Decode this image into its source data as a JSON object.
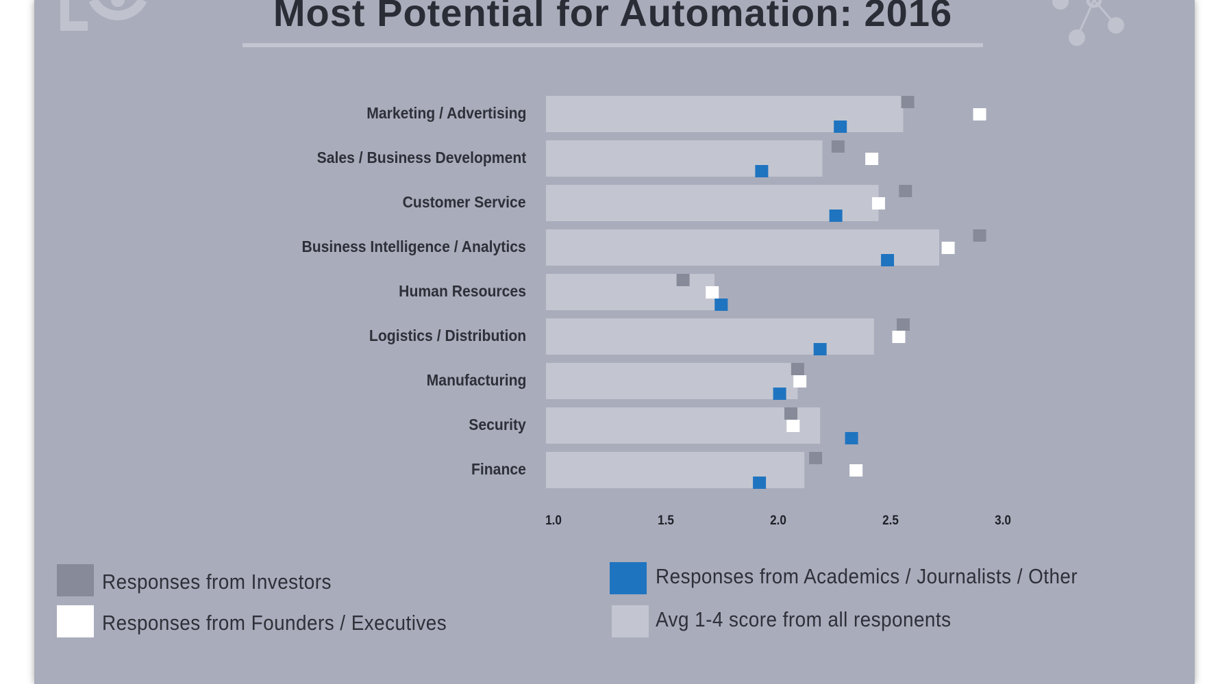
{
  "colors": {
    "background": "#a9acbb",
    "avg_bar": "#c3c6d0",
    "investors": "#878a98",
    "founders": "#ffffff",
    "academics": "#1f74c0"
  },
  "logos": [
    "eo-logo-icon",
    "molecule-icon"
  ],
  "chart_data": {
    "type": "bar",
    "orientation": "horizontal",
    "title": "Most Potential for Automation: 2016",
    "xlabel": "",
    "ylabel": "",
    "xlim": [
      1.0,
      3.0
    ],
    "xticks": [
      "1.0",
      "1.5",
      "2.0",
      "2.5",
      "3.0"
    ],
    "grid": false,
    "legend_position": "bottom",
    "categories": [
      "Marketing / Advertising",
      "Sales / Business Development",
      "Customer Service",
      "Business Intelligence / Analytics",
      "Human Resources",
      "Logistics / Distribution",
      "Manufacturing",
      "Security",
      "Finance"
    ],
    "series": [
      {
        "name": "Avg 1-4 score from all responents",
        "mark": "bar",
        "color": "#c3c6d0",
        "values": [
          2.59,
          2.23,
          2.48,
          2.75,
          1.75,
          2.46,
          2.12,
          2.22,
          2.15
        ]
      },
      {
        "name": "Responses from Investors",
        "mark": "square",
        "color": "#878a98",
        "values": [
          2.61,
          2.3,
          2.6,
          2.93,
          1.61,
          2.59,
          2.12,
          2.09,
          2.2
        ]
      },
      {
        "name": "Responses from Founders / Executives",
        "mark": "square",
        "color": "#ffffff",
        "values": [
          2.93,
          2.45,
          2.48,
          2.79,
          1.74,
          2.57,
          2.13,
          2.1,
          2.38
        ]
      },
      {
        "name": "Responses from Academics / Journalists / Other",
        "mark": "square",
        "color": "#1f74c0",
        "values": [
          2.31,
          1.96,
          2.29,
          2.52,
          1.78,
          2.22,
          2.04,
          2.36,
          1.95
        ]
      }
    ]
  }
}
